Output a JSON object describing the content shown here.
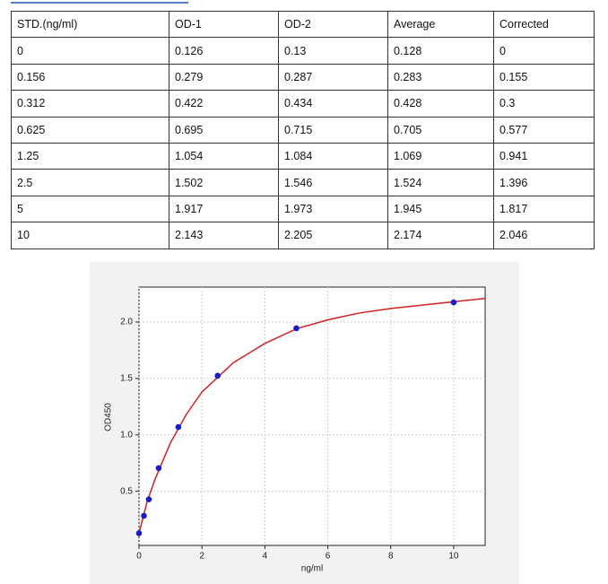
{
  "table": {
    "header": [
      "STD.(ng/ml)",
      "OD-1",
      "OD-2",
      "Average",
      "Corrected"
    ],
    "rows": [
      [
        "0",
        "0.126",
        "0.13",
        "0.128",
        "0"
      ],
      [
        "0.156",
        "0.279",
        "0.287",
        "0.283",
        "0.155"
      ],
      [
        "0.312",
        "0.422",
        "0.434",
        "0.428",
        "0.3"
      ],
      [
        "0.625",
        "0.695",
        "0.715",
        "0.705",
        "0.577"
      ],
      [
        "1.25",
        "1.054",
        "1.084",
        "1.069",
        "0.941"
      ],
      [
        "2.5",
        "1.502",
        "1.546",
        "1.524",
        "1.396"
      ],
      [
        "5",
        "1.917",
        "1.973",
        "1.945",
        "1.817"
      ],
      [
        "10",
        "2.143",
        "2.205",
        "2.174",
        "2.046"
      ]
    ]
  },
  "chart_data": {
    "type": "scatter",
    "x_label": "ng/ml",
    "y_label": "OD450",
    "xlim": [
      0,
      11
    ],
    "ylim": [
      0.02,
      2.31
    ],
    "xticks": [
      0,
      2,
      4,
      6,
      8,
      10
    ],
    "yticks": [
      0.5,
      {
        "value": 1.0,
        "label": "1.0"
      },
      1.5,
      {
        "value": 2.0,
        "label": "2.0"
      }
    ],
    "grid": true,
    "series": [
      {
        "type": "scatter",
        "color": "#1a1acc",
        "x": [
          0,
          0.156,
          0.312,
          0.625,
          1.25,
          2.5,
          5,
          10
        ],
        "values": [
          0.128,
          0.283,
          0.428,
          0.705,
          1.069,
          1.524,
          1.945,
          2.174
        ]
      },
      {
        "type": "line",
        "color": "#d42020",
        "x": [
          0,
          0.25,
          0.5,
          1,
          1.5,
          2,
          3,
          4,
          5,
          6,
          7,
          8,
          9,
          10,
          11
        ],
        "values": [
          0.128,
          0.4,
          0.6,
          0.93,
          1.18,
          1.38,
          1.64,
          1.81,
          1.94,
          2.02,
          2.08,
          2.12,
          2.15,
          2.18,
          2.21
        ]
      }
    ]
  }
}
